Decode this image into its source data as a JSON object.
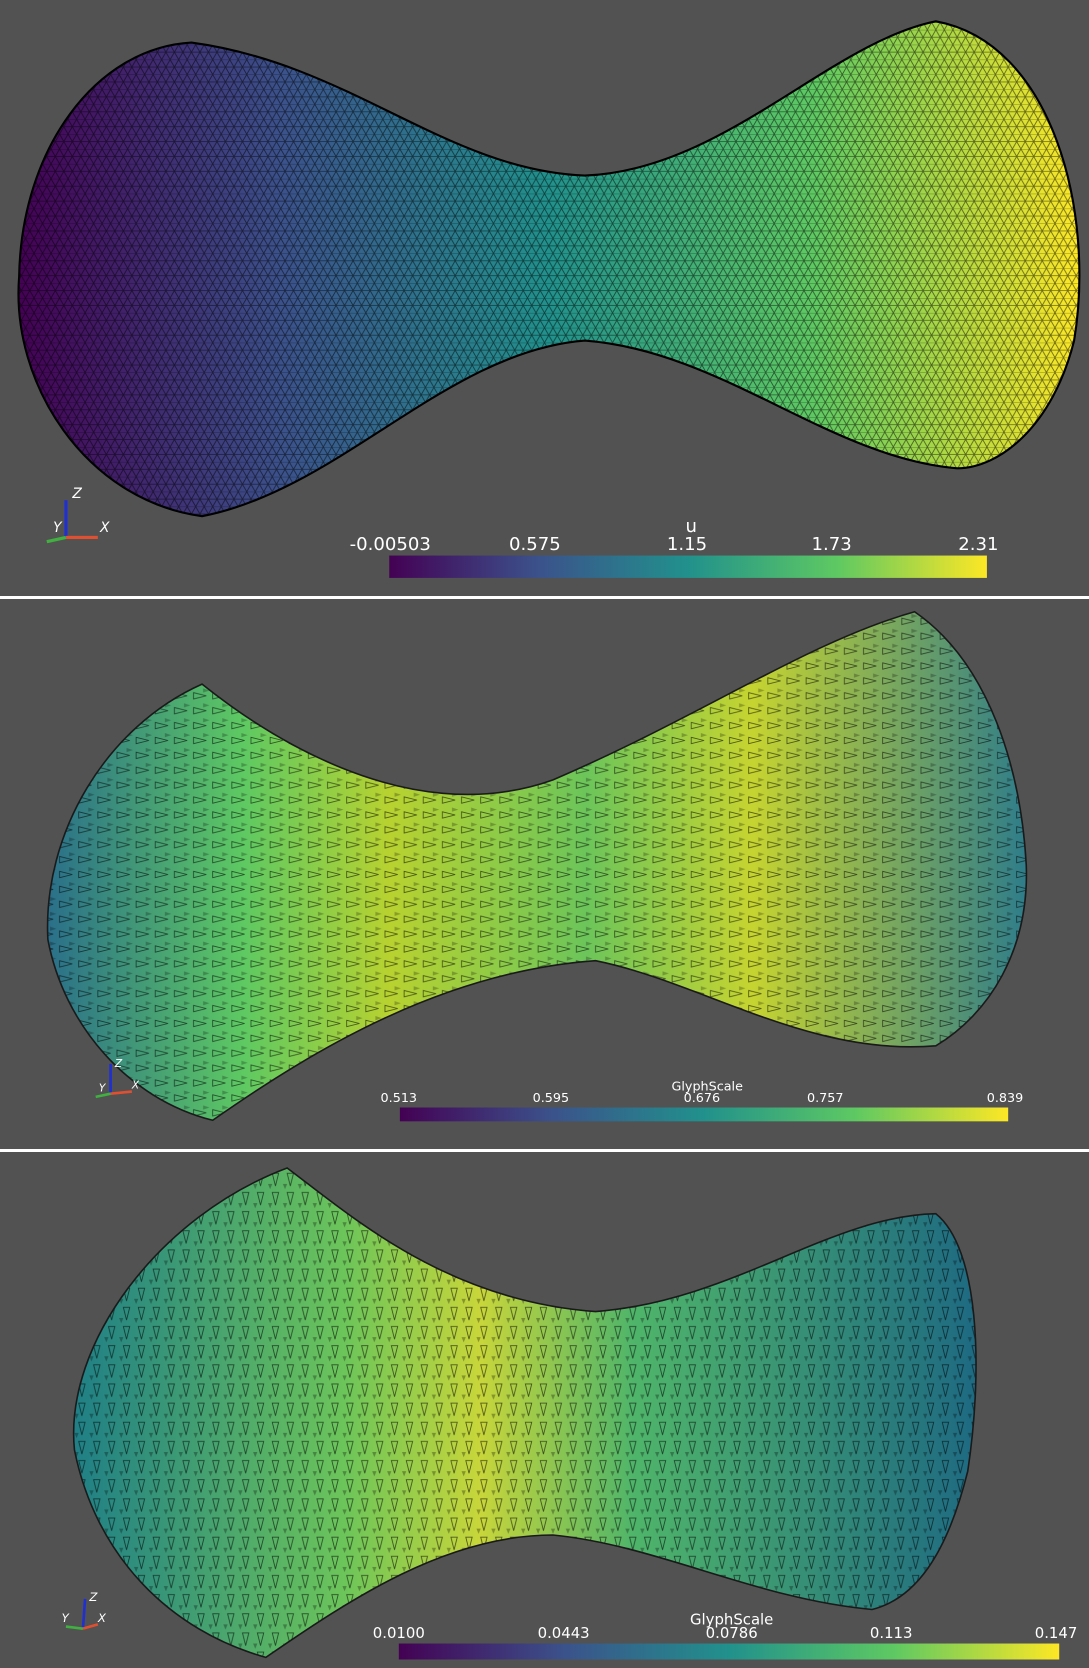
{
  "panels": [
    {
      "axes": {
        "z": "Z",
        "y": "Y",
        "x": "X"
      },
      "colorbar": {
        "title": "u",
        "labels": [
          "-0.00503",
          "0.575",
          "1.15",
          "1.73",
          "2.31"
        ]
      }
    },
    {
      "axes": {
        "z": "Z",
        "y": "Y",
        "x": "X"
      },
      "colorbar": {
        "title": "GlyphScale",
        "labels": [
          "0.513",
          "0.595",
          "0.676",
          "0.757",
          "0.839"
        ]
      }
    },
    {
      "axes": {
        "z": "Z",
        "y": "Y",
        "x": "X"
      },
      "colorbar": {
        "title": "GlyphScale",
        "labels": [
          "0.0100",
          "0.0443",
          "0.0786",
          "0.113",
          "0.147"
        ]
      }
    }
  ]
}
